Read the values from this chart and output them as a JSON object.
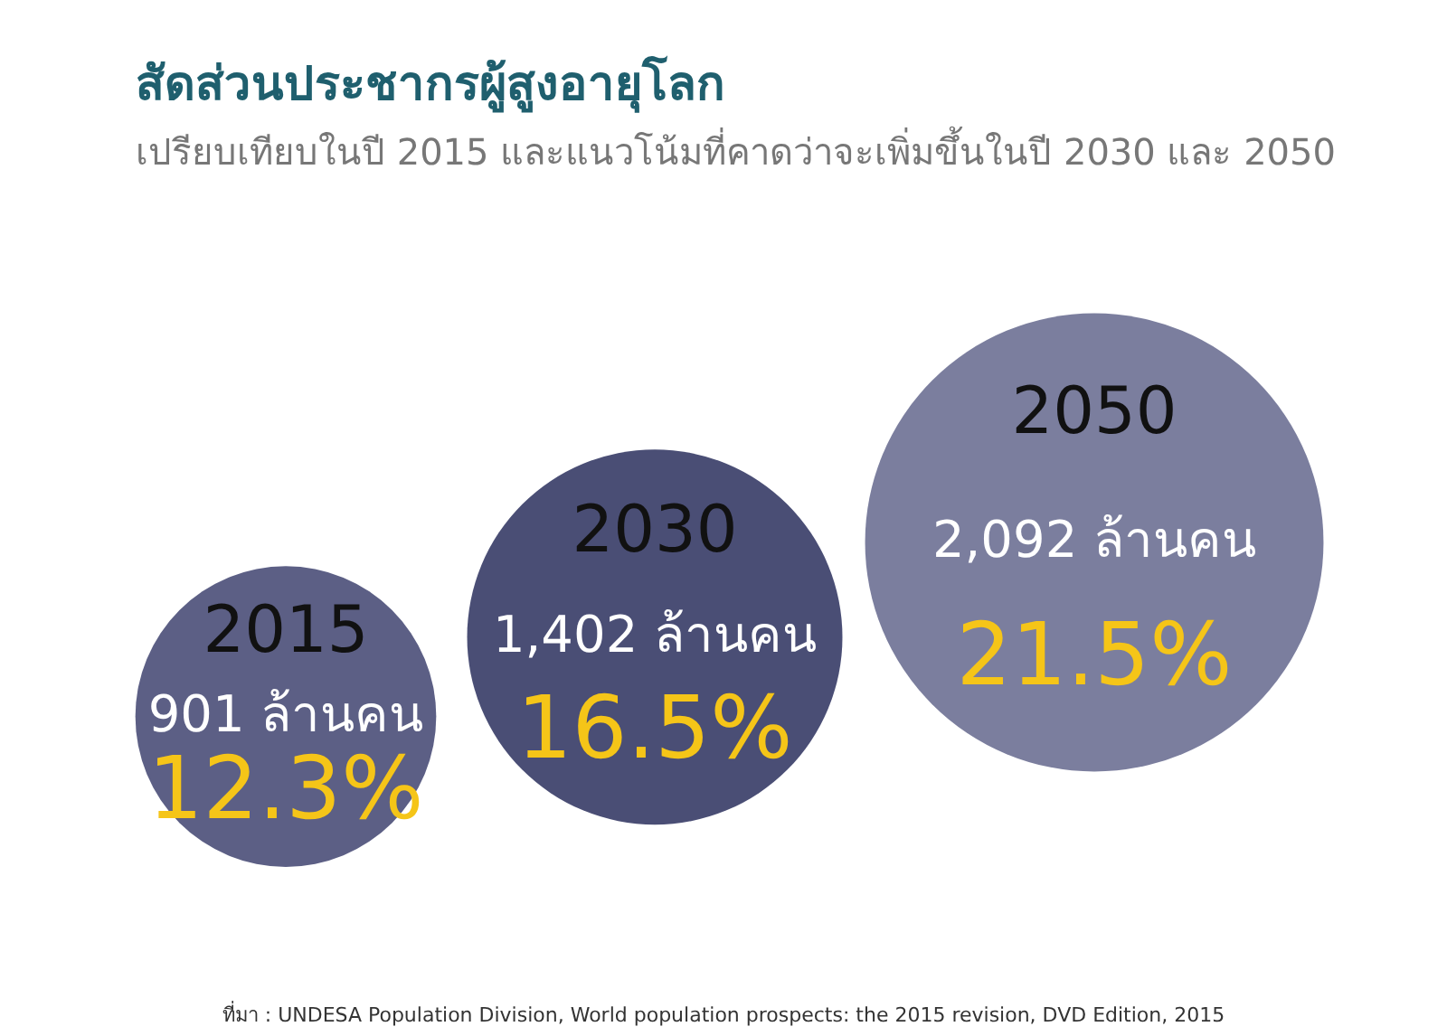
{
  "chart_data": {
    "type": "other",
    "title": "สัดส่วนประชากรผู้สูงอายุโลก",
    "subtitle": "เปรียบเทียบในปี 2015 และแนวโน้มที่คาดว่าจะเพิ่มขึ้นในปี 2030 และ 2050",
    "categories": [
      "2015",
      "2030",
      "2050"
    ],
    "series": [
      {
        "values": [
          901,
          1402,
          2092
        ],
        "value_labels": [
          "901 ล้านคน",
          "1,402 ล้านคน",
          "2,092 ล้านคน"
        ],
        "colors": [
          "#5c5f85",
          "#4a4e75",
          "#7b7e9e"
        ]
      },
      {
        "values": [
          12.3,
          16.5,
          21.5
        ],
        "value_labels": [
          "12.3%",
          "16.5%",
          "21.5%"
        ]
      }
    ],
    "annotations": [
      "ที่มา : UNDESA Population Division, World population prospects: the 2015 revision, DVD Edition, 2015"
    ]
  }
}
